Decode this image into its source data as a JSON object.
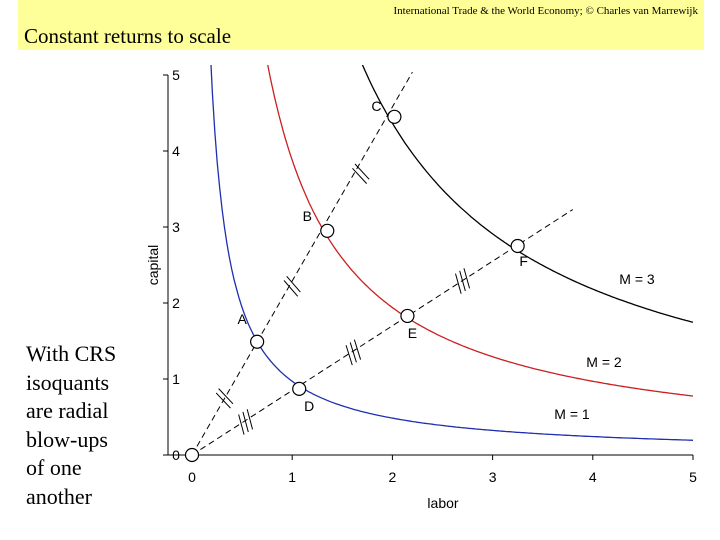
{
  "header": {
    "credit": "International Trade & the World Economy;  © Charles van Marrewijk",
    "title": "Constant returns to scale"
  },
  "side_note": {
    "lines": [
      "With CRS",
      "isoquants",
      "are radial",
      "blow-ups",
      "of one",
      "another"
    ]
  },
  "colors": {
    "header_bg": "#ffff99",
    "m1": "#1f2fb0",
    "m2": "#cc1f1f",
    "m3": "#000000"
  },
  "chart_data": {
    "type": "line",
    "xlabel": "labor",
    "ylabel": "capital",
    "xlim": [
      0,
      5
    ],
    "ylim": [
      0,
      5
    ],
    "xticks": [
      0,
      1,
      2,
      3,
      4,
      5
    ],
    "yticks": [
      0,
      1,
      2,
      3,
      4,
      5
    ],
    "grid": false,
    "series": [
      {
        "name": "M = 1",
        "color": "#1f2fb0",
        "k": 0.97
      },
      {
        "name": "M = 2",
        "color": "#cc1f1f",
        "k": 3.88
      },
      {
        "name": "M = 3",
        "color": "#000000",
        "k": 8.73
      }
    ],
    "rays": [
      {
        "slope": 2.29,
        "x_end": 2.2
      },
      {
        "slope": 0.85,
        "x_end": 3.8
      }
    ],
    "points": [
      {
        "label": "O",
        "x": 0,
        "y": 0
      },
      {
        "label": "A",
        "x": 0.65,
        "y": 1.49
      },
      {
        "label": "B",
        "x": 1.35,
        "y": 2.95
      },
      {
        "label": "C",
        "x": 2.02,
        "y": 4.45
      },
      {
        "label": "D",
        "x": 1.07,
        "y": 0.87
      },
      {
        "label": "E",
        "x": 2.15,
        "y": 1.83
      },
      {
        "label": "F",
        "x": 3.25,
        "y": 2.75
      }
    ],
    "annotations": [
      "M = 1",
      "M = 2",
      "M = 3"
    ]
  }
}
